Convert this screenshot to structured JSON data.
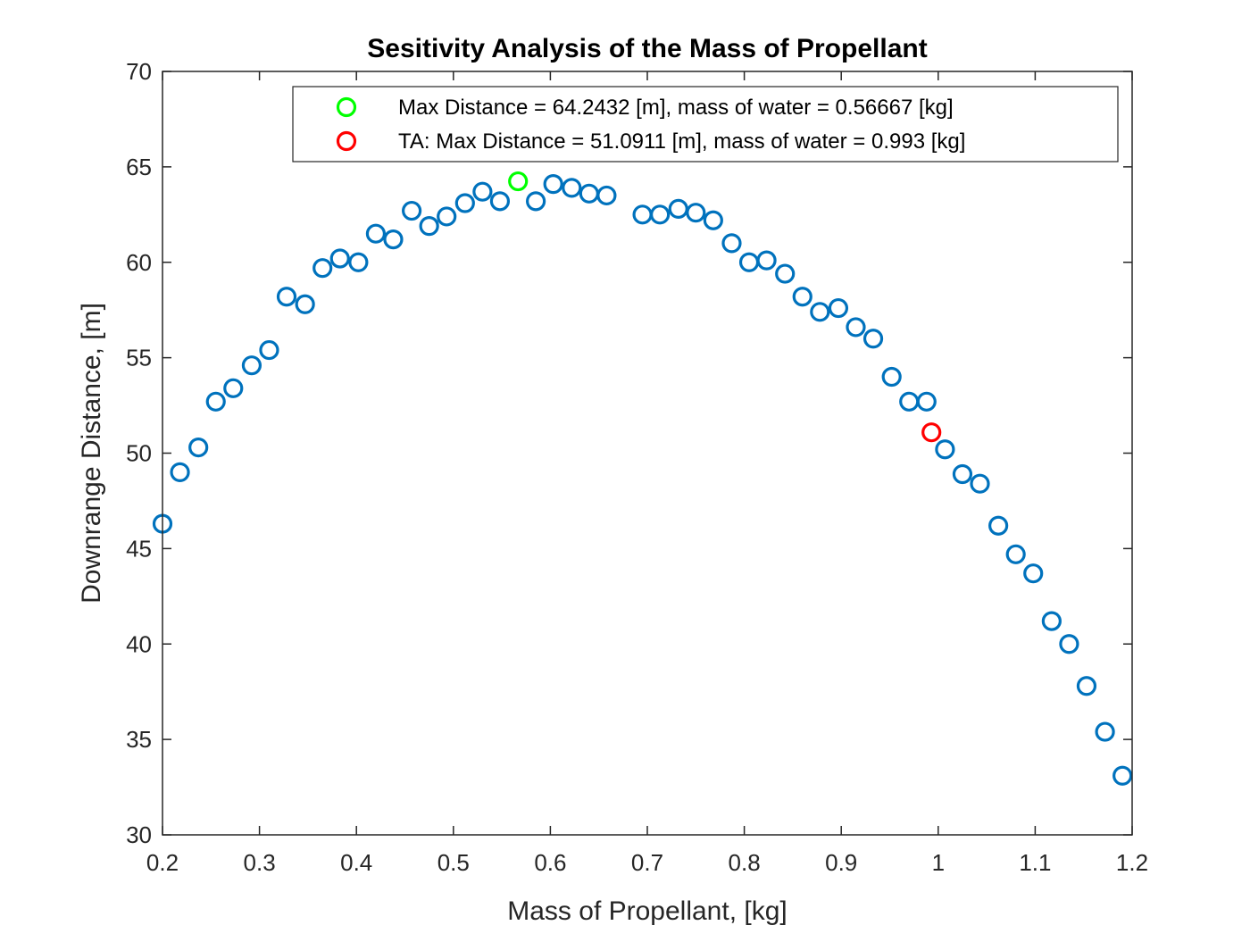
{
  "chart_data": {
    "type": "scatter",
    "title": "Sesitivity Analysis of the Mass of Propellant",
    "xlabel": "Mass of Propellant, [kg]",
    "ylabel": "Downrange Distance, [m]",
    "xlim": [
      0.2,
      1.2
    ],
    "ylim": [
      30,
      70
    ],
    "x_ticks": [
      "0.2",
      "0.3",
      "0.4",
      "0.5",
      "0.6",
      "0.7",
      "0.8",
      "0.9",
      "1",
      "1.1",
      "1.2"
    ],
    "y_ticks": [
      "30",
      "35",
      "40",
      "45",
      "50",
      "55",
      "60",
      "65",
      "70"
    ],
    "grid": false,
    "legend_position": "top-right",
    "series": [
      {
        "color": "#0072BD",
        "marker": "circle-open",
        "x": [
          0.2,
          0.218,
          0.237,
          0.255,
          0.273,
          0.292,
          0.31,
          0.328,
          0.347,
          0.365,
          0.383,
          0.402,
          0.42,
          0.438,
          0.457,
          0.475,
          0.493,
          0.512,
          0.53,
          0.548,
          0.585,
          0.603,
          0.622,
          0.64,
          0.658,
          0.695,
          0.713,
          0.732,
          0.75,
          0.768,
          0.787,
          0.805,
          0.823,
          0.842,
          0.86,
          0.878,
          0.897,
          0.915,
          0.933,
          0.952,
          0.97,
          0.988,
          1.007,
          1.025,
          1.043,
          1.062,
          1.08,
          1.098,
          1.117,
          1.135,
          1.153,
          1.172,
          1.19
        ],
        "y": [
          46.3,
          49.0,
          50.3,
          52.7,
          53.4,
          54.6,
          55.4,
          58.2,
          57.8,
          59.7,
          60.2,
          60.0,
          61.5,
          61.2,
          62.7,
          61.9,
          62.4,
          63.1,
          63.7,
          63.2,
          63.2,
          64.1,
          63.9,
          63.6,
          63.5,
          62.5,
          62.5,
          62.8,
          62.6,
          62.2,
          61.0,
          60.0,
          60.1,
          59.4,
          58.2,
          57.4,
          57.6,
          56.6,
          56.0,
          54.0,
          52.7,
          52.7,
          50.2,
          48.9,
          48.4,
          46.2,
          44.7,
          43.7,
          41.2,
          40.0,
          37.8,
          35.4,
          33.1
        ]
      },
      {
        "name": "Max Distance = 64.2432 [m], mass of water = 0.56667 [kg]",
        "color": "#00FF00",
        "marker": "circle-open",
        "x": [
          0.56667
        ],
        "y": [
          64.2432
        ]
      },
      {
        "name": "TA: Max Distance = 51.0911 [m], mass of water = 0.993 [kg]",
        "color": "#FF0000",
        "marker": "circle-open",
        "x": [
          0.993
        ],
        "y": [
          51.0911
        ]
      }
    ]
  }
}
